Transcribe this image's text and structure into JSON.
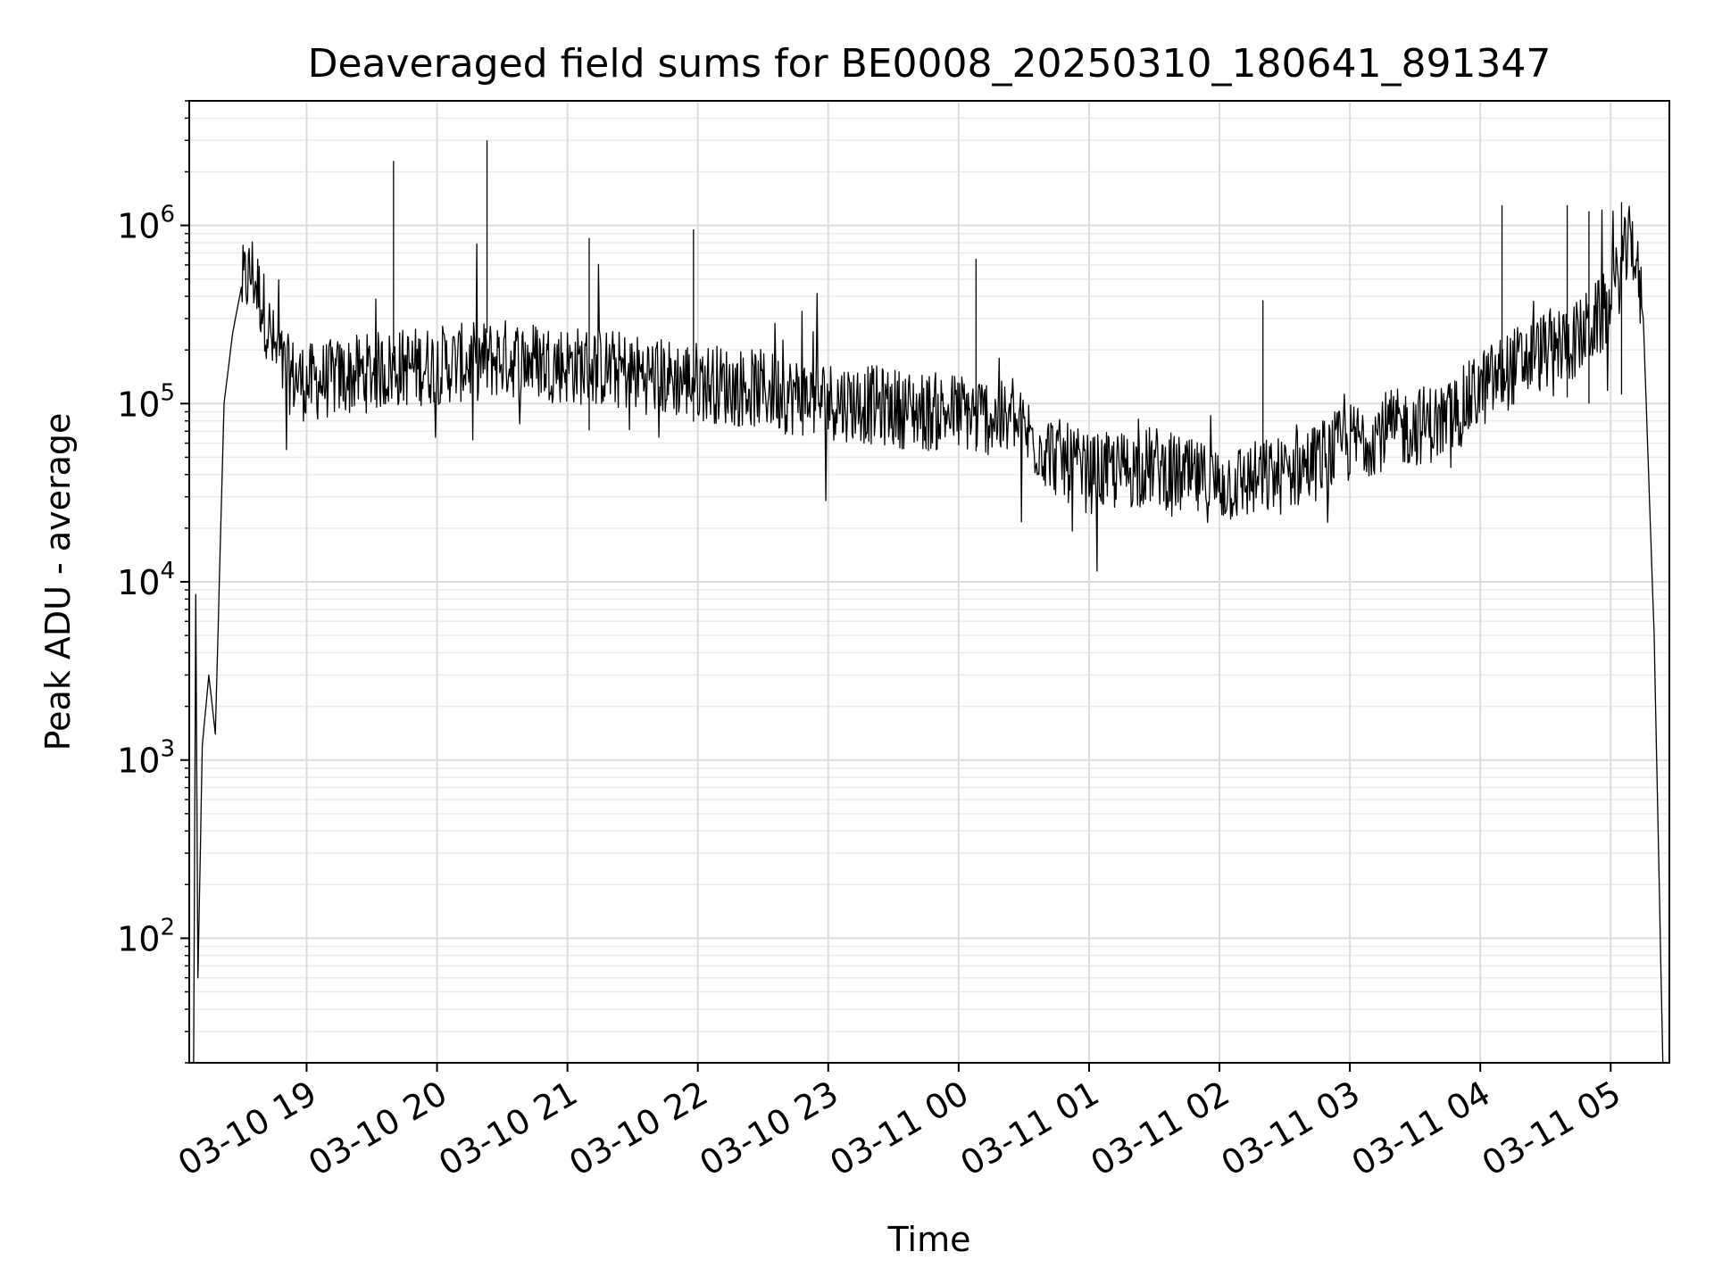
{
  "chart_data": {
    "type": "line",
    "title": "Deaveraged field sums for BE0008_20250310_180641_891347",
    "xlabel": "Time",
    "ylabel": "Peak ADU - average",
    "yscale": "log",
    "ylim": [
      20,
      5000000
    ],
    "xlim": [
      "2025-03-10 18:06",
      "2025-03-11 05:27"
    ],
    "grid": true,
    "grid_minor": true,
    "x_ticks": [
      {
        "t": "2025-03-10 19:00",
        "label": "03-10 19"
      },
      {
        "t": "2025-03-10 20:00",
        "label": "03-10 20"
      },
      {
        "t": "2025-03-10 21:00",
        "label": "03-10 21"
      },
      {
        "t": "2025-03-10 22:00",
        "label": "03-10 22"
      },
      {
        "t": "2025-03-10 23:00",
        "label": "03-10 23"
      },
      {
        "t": "2025-03-11 00:00",
        "label": "03-11 00"
      },
      {
        "t": "2025-03-11 01:00",
        "label": "03-11 01"
      },
      {
        "t": "2025-03-11 02:00",
        "label": "03-11 02"
      },
      {
        "t": "2025-03-11 03:00",
        "label": "03-11 03"
      },
      {
        "t": "2025-03-11 04:00",
        "label": "03-11 04"
      },
      {
        "t": "2025-03-11 05:00",
        "label": "03-11 05"
      }
    ],
    "y_ticks": [
      {
        "value": 100,
        "base": "10",
        "exp": "2"
      },
      {
        "value": 1000,
        "base": "10",
        "exp": "3"
      },
      {
        "value": 10000,
        "base": "10",
        "exp": "4"
      },
      {
        "value": 100000,
        "base": "10",
        "exp": "5"
      },
      {
        "value": 1000000,
        "base": "10",
        "exp": "6"
      }
    ],
    "line_color": "#000000",
    "series": [
      {
        "x": [
          "2025-03-10 18:08",
          "2025-03-10 18:09",
          "2025-03-10 18:10",
          "2025-03-10 18:12",
          "2025-03-10 18:15",
          "2025-03-10 18:18",
          "2025-03-10 18:22",
          "2025-03-10 18:26",
          "2025-03-10 18:30",
          "2025-03-10 18:35",
          "2025-03-10 18:40",
          "2025-03-10 18:45",
          "2025-03-10 18:50",
          "2025-03-10 19:00",
          "2025-03-10 19:15",
          "2025-03-10 19:30",
          "2025-03-10 19:45",
          "2025-03-10 20:00",
          "2025-03-10 20:15",
          "2025-03-10 20:30",
          "2025-03-10 20:45",
          "2025-03-10 21:00",
          "2025-03-10 21:15",
          "2025-03-10 21:30",
          "2025-03-10 21:45",
          "2025-03-10 22:00",
          "2025-03-10 22:15",
          "2025-03-10 22:30",
          "2025-03-10 22:45",
          "2025-03-10 23:00",
          "2025-03-10 23:15",
          "2025-03-10 23:30",
          "2025-03-10 23:45",
          "2025-03-11 00:00",
          "2025-03-11 00:15",
          "2025-03-11 00:30",
          "2025-03-11 00:45",
          "2025-03-11 01:00",
          "2025-03-11 01:15",
          "2025-03-11 01:30",
          "2025-03-11 01:45",
          "2025-03-11 02:00",
          "2025-03-11 02:15",
          "2025-03-11 02:30",
          "2025-03-11 02:45",
          "2025-03-11 03:00",
          "2025-03-11 03:15",
          "2025-03-11 03:30",
          "2025-03-11 03:45",
          "2025-03-11 04:00",
          "2025-03-11 04:15",
          "2025-03-11 04:30",
          "2025-03-11 04:45",
          "2025-03-11 05:00",
          "2025-03-11 05:05",
          "2025-03-11 05:10",
          "2025-03-11 05:15",
          "2025-03-11 05:20",
          "2025-03-11 05:24"
        ],
        "y": [
          20,
          8500,
          60,
          1200,
          3000,
          1400,
          100000,
          250000,
          450000,
          550000,
          350000,
          200000,
          150000,
          130000,
          140000,
          150000,
          160000,
          165000,
          170000,
          180000,
          175000,
          165000,
          160000,
          150000,
          140000,
          135000,
          125000,
          120000,
          110000,
          105000,
          100000,
          95000,
          90000,
          90000,
          85000,
          70000,
          50000,
          40000,
          42000,
          45000,
          38000,
          35000,
          37000,
          40000,
          48000,
          60000,
          70000,
          75000,
          80000,
          120000,
          160000,
          200000,
          230000,
          350000,
          600000,
          850000,
          300000,
          5000,
          20
        ]
      }
    ],
    "spikes": [
      {
        "t": "2025-03-10 19:40",
        "y": 2300000
      },
      {
        "t": "2025-03-10 20:23",
        "y": 3000000
      },
      {
        "t": "2025-03-10 21:10",
        "y": 850000
      },
      {
        "t": "2025-03-10 21:58",
        "y": 950000
      },
      {
        "t": "2025-03-11 00:08",
        "y": 650000
      },
      {
        "t": "2025-03-11 02:20",
        "y": 380000
      },
      {
        "t": "2025-03-11 04:10",
        "y": 1300000
      },
      {
        "t": "2025-03-11 04:40",
        "y": 1300000
      },
      {
        "t": "2025-03-11 05:05",
        "y": 1350000
      },
      {
        "t": "2025-03-11 04:50",
        "y": 1200000
      }
    ]
  }
}
